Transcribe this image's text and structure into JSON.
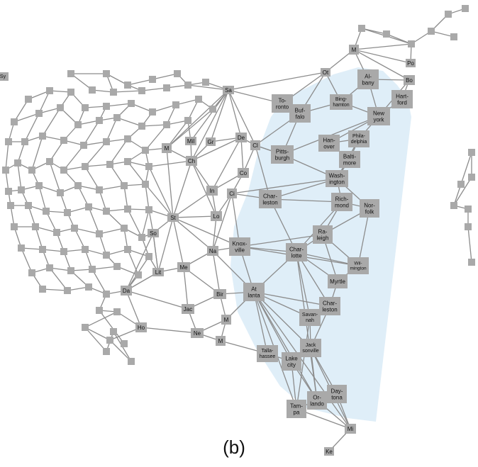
{
  "caption": "(b)",
  "colors": {
    "edge": "#8c8c8c",
    "node": "#a9a9a9",
    "highlight": "#dfeef8"
  },
  "labels": {
    "sy": "Sy",
    "ot": "Ot",
    "m_ne": "M",
    "po": "Po",
    "albany": "Al-\nbany",
    "bo": "Bo",
    "hartford": "Hart-\nford",
    "sa": "Sa",
    "toronto": "To-\nronto",
    "buffalo": "Buf-\nfalo",
    "binghamton": "Bing-\nhamton",
    "newyork": "New\nyork",
    "mil": "Mil",
    "gr": "Gr",
    "de": "De",
    "cl": "Cl",
    "m_mid": "M",
    "ch": "Ch",
    "pittsburgh": "Pitts-\nburgh",
    "hanover": "Han-\nover",
    "philadelphia": "Phila-\ndelphia",
    "baltimore": "Balti-\nmore",
    "co": "Co",
    "washington": "Wash-\nington",
    "in": "In",
    "ci": "Ci",
    "charleston_wv": "Char-\nleston",
    "richmond": "Rich-\nmond",
    "norfolk": "Nor-\nfolk",
    "st": "St",
    "lo": "Lo",
    "raleigh": "Ra-\nleigh",
    "so": "So",
    "knoxville": "Knox-\nville",
    "na": "Na",
    "charlotte": "Char-\nlotte",
    "wilmington": "Wil-\nmington",
    "me": "Me",
    "lit": "Lit",
    "myrtle": "Myrtle",
    "da": "Da",
    "bir": "Bir",
    "atlanta": "At\nlanta",
    "charleston_sc": "Char-\nleston",
    "jac": "Jac",
    "m_south": "M",
    "savannah": "Savan-\nnah",
    "ho": "Ho",
    "ne": "Ne",
    "m_sw": "M",
    "jacksonville": "Jack\nsonville",
    "tallahassee": "Talla-\nhassee",
    "lakecity": "Lake\ncity",
    "daytona": "Day-\ntona",
    "orlando": "Or-\nlando",
    "tampa": "Tam-\npa",
    "mi": "Mi",
    "ke": "Ke"
  }
}
